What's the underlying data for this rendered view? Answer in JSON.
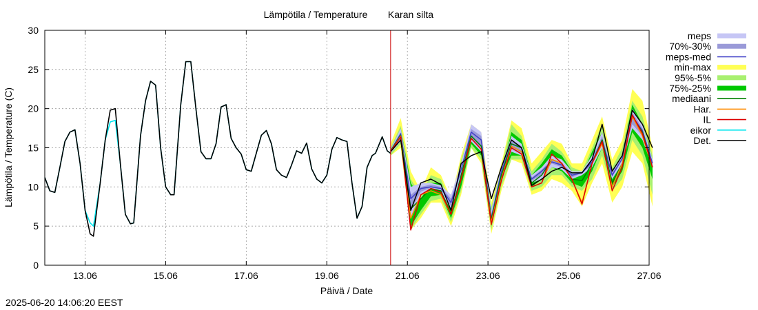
{
  "chart_data": {
    "type": "line",
    "title": "Lämpötila / Temperature",
    "station": "Karan silta",
    "xlabel": "Päivä / Date",
    "ylabel": "Lämpötila / Temperature (C)",
    "x_domain": [
      "2025-06-12",
      "2025-06-27"
    ],
    "ylim": [
      0,
      30
    ],
    "yticks": [
      "0",
      "5",
      "10",
      "15",
      "20",
      "25",
      "30"
    ],
    "xticks": [
      {
        "date": "2025-06-13",
        "label": "13.06"
      },
      {
        "date": "2025-06-15",
        "label": "15.06"
      },
      {
        "date": "2025-06-17",
        "label": "17.06"
      },
      {
        "date": "2025-06-19",
        "label": "19.06"
      },
      {
        "date": "2025-06-21",
        "label": "21.06"
      },
      {
        "date": "2025-06-23",
        "label": "23.06"
      },
      {
        "date": "2025-06-25",
        "label": "25.06"
      },
      {
        "date": "2025-06-27",
        "label": "27.06"
      }
    ],
    "grid": true,
    "legend_position": "outside-right",
    "now_line": "2025-06-20T14:00",
    "colors": {
      "meps": "#c6c6f5",
      "70%-30%": "#9a9ad8",
      "meps-med": "#4040c8",
      "min-max": "#ffff55",
      "95%-5%": "#a8f070",
      "75%-25%": "#00c800",
      "mediaani": "#008000",
      "Har.": "#ff8c00",
      "IL": "#dd0000",
      "eikor": "#00e5ee",
      "Det.": "#000000",
      "now_line": "#cc0000"
    },
    "legend": [
      {
        "key": "meps",
        "label": "meps",
        "style": "band"
      },
      {
        "key": "70%-30%",
        "label": "70%-30%",
        "style": "band"
      },
      {
        "key": "meps-med",
        "label": "meps-med",
        "style": "line"
      },
      {
        "key": "min-max",
        "label": "min-max",
        "style": "band"
      },
      {
        "key": "95%-5%",
        "label": "95%-5%",
        "style": "band"
      },
      {
        "key": "75%-25%",
        "label": "75%-25%",
        "style": "band"
      },
      {
        "key": "mediaani",
        "label": "mediaani",
        "style": "line"
      },
      {
        "key": "Har.",
        "label": "Har.",
        "style": "line"
      },
      {
        "key": "IL",
        "label": "IL",
        "style": "line"
      },
      {
        "key": "eikor",
        "label": "eikor",
        "style": "line"
      },
      {
        "key": "Det.",
        "label": "Det.",
        "style": "line"
      }
    ],
    "observed": {
      "x": [
        "2025-06-12T00:00",
        "2025-06-12T03:00",
        "2025-06-12T06:00",
        "2025-06-12T09:00",
        "2025-06-12T12:00",
        "2025-06-12T15:00",
        "2025-06-12T18:00",
        "2025-06-12T21:00",
        "2025-06-13T00:00",
        "2025-06-13T03:00",
        "2025-06-13T05:00",
        "2025-06-13T09:00",
        "2025-06-13T12:00",
        "2025-06-13T15:00",
        "2025-06-13T18:00",
        "2025-06-13T21:00",
        "2025-06-14T00:00",
        "2025-06-14T03:00",
        "2025-06-14T05:00",
        "2025-06-14T09:00",
        "2025-06-14T12:00",
        "2025-06-14T15:00",
        "2025-06-14T18:00",
        "2025-06-14T21:00",
        "2025-06-15T00:00",
        "2025-06-15T03:00",
        "2025-06-15T05:00",
        "2025-06-15T09:00",
        "2025-06-15T12:00",
        "2025-06-15T15:00",
        "2025-06-15T18:00",
        "2025-06-15T21:00",
        "2025-06-16T00:00",
        "2025-06-16T03:00",
        "2025-06-16T06:00",
        "2025-06-16T09:00",
        "2025-06-16T12:00",
        "2025-06-16T15:00",
        "2025-06-16T18:00",
        "2025-06-16T21:00",
        "2025-06-17T00:00",
        "2025-06-17T03:00",
        "2025-06-17T06:00",
        "2025-06-17T09:00",
        "2025-06-17T12:00",
        "2025-06-17T15:00",
        "2025-06-17T18:00",
        "2025-06-17T21:00",
        "2025-06-18T00:00",
        "2025-06-18T03:00",
        "2025-06-18T06:00",
        "2025-06-18T09:00",
        "2025-06-18T12:00",
        "2025-06-18T15:00",
        "2025-06-18T18:00",
        "2025-06-18T21:00",
        "2025-06-19T00:00",
        "2025-06-19T03:00",
        "2025-06-19T06:00",
        "2025-06-19T09:00",
        "2025-06-19T12:00",
        "2025-06-19T15:00",
        "2025-06-19T18:00",
        "2025-06-19T21:00",
        "2025-06-20T00:00",
        "2025-06-20T03:00",
        "2025-06-20T05:00",
        "2025-06-20T09:00",
        "2025-06-20T12:00",
        "2025-06-20T14:00"
      ],
      "det": [
        11.2,
        9.5,
        9.3,
        12.5,
        15.8,
        17.0,
        17.3,
        13.0,
        7.0,
        4.0,
        3.7,
        10.5,
        16.0,
        19.8,
        20.0,
        13.0,
        6.5,
        5.3,
        5.4,
        16.5,
        21.0,
        23.5,
        23.0,
        15.0,
        10.0,
        9.0,
        9.0,
        20.5,
        26.0,
        26.0,
        20.0,
        14.5,
        13.6,
        13.6,
        15.5,
        20.2,
        20.5,
        16.2,
        15.0,
        14.2,
        12.2,
        12.0,
        14.3,
        16.6,
        17.2,
        15.5,
        12.2,
        11.5,
        11.2,
        12.8,
        14.6,
        14.3,
        15.6,
        12.3,
        11.0,
        10.5,
        11.5,
        14.8,
        16.3,
        16.0,
        15.8,
        10.5,
        6.0,
        7.5,
        12.5,
        14.0,
        14.3,
        16.4,
        14.6,
        14.3
      ],
      "eikor": [
        11.2,
        9.5,
        9.3,
        12.5,
        15.8,
        17.0,
        17.3,
        13.0,
        7.0,
        5.4,
        5.0,
        10.5,
        16.0,
        18.3,
        18.5,
        13.0,
        6.5,
        5.3,
        5.4,
        16.5,
        21.0,
        23.5,
        23.0,
        15.0,
        10.0,
        9.0,
        9.0,
        20.5,
        26.0,
        26.0,
        20.0,
        14.5,
        13.6,
        13.6,
        15.5,
        20.2,
        20.5,
        16.2,
        15.0,
        14.2,
        12.2,
        12.0,
        14.3,
        16.6,
        17.2,
        15.5,
        12.2,
        11.5,
        11.2,
        12.8,
        14.6,
        14.3,
        15.6,
        12.3,
        11.0,
        10.5,
        11.5,
        14.8,
        16.3,
        16.0,
        15.8,
        10.5,
        6.0,
        7.5,
        12.5,
        14.0,
        14.3,
        16.4,
        14.6,
        14.3
      ]
    },
    "forecast": {
      "x": [
        "2025-06-20T14:00",
        "2025-06-20T20:00",
        "2025-06-21T02:00",
        "2025-06-21T08:00",
        "2025-06-21T14:00",
        "2025-06-21T20:00",
        "2025-06-22T02:00",
        "2025-06-22T08:00",
        "2025-06-22T14:00",
        "2025-06-22T20:00",
        "2025-06-23T02:00",
        "2025-06-23T08:00",
        "2025-06-23T14:00",
        "2025-06-23T20:00",
        "2025-06-24T02:00",
        "2025-06-24T08:00",
        "2025-06-24T14:00",
        "2025-06-24T20:00",
        "2025-06-25T02:00",
        "2025-06-25T08:00",
        "2025-06-25T14:00",
        "2025-06-25T20:00",
        "2025-06-26T02:00",
        "2025-06-26T08:00",
        "2025-06-26T14:00",
        "2025-06-26T20:00",
        "2025-06-27T02:00"
      ],
      "minmax_lo": [
        14.0,
        15.0,
        4.5,
        6.0,
        8.0,
        8.0,
        5.0,
        9.0,
        15.0,
        13.0,
        4.0,
        9.5,
        13.5,
        13.0,
        9.0,
        9.5,
        11.0,
        10.5,
        9.5,
        7.5,
        10.5,
        13.0,
        8.0,
        10.0,
        14.5,
        13.0,
        7.5
      ],
      "minmax_hi": [
        15.5,
        18.8,
        12.0,
        9.5,
        12.5,
        11.5,
        8.5,
        14.0,
        18.0,
        17.0,
        8.0,
        13.0,
        18.5,
        17.5,
        13.0,
        14.5,
        16.0,
        15.5,
        13.0,
        13.0,
        16.0,
        19.0,
        13.5,
        16.0,
        22.5,
        21.0,
        15.0
      ],
      "p95_lo": [
        14.0,
        15.5,
        4.5,
        6.5,
        8.2,
        8.5,
        5.5,
        9.5,
        15.0,
        13.5,
        4.5,
        10.0,
        13.5,
        13.5,
        9.5,
        10.0,
        11.5,
        11.5,
        10.0,
        9.5,
        11.0,
        14.0,
        9.5,
        11.0,
        16.0,
        14.0,
        9.0
      ],
      "p95_hi": [
        15.0,
        17.8,
        11.0,
        9.0,
        11.5,
        11.0,
        8.0,
        13.5,
        17.5,
        16.5,
        7.5,
        12.5,
        18.0,
        16.5,
        12.0,
        13.5,
        15.5,
        14.5,
        12.5,
        12.0,
        15.0,
        18.0,
        12.5,
        15.0,
        21.0,
        19.0,
        14.0
      ],
      "p75_lo": [
        14.5,
        16.0,
        5.0,
        7.0,
        8.8,
        9.0,
        6.0,
        10.0,
        15.5,
        14.0,
        5.0,
        11.0,
        14.0,
        14.0,
        10.0,
        11.0,
        12.5,
        12.0,
        10.5,
        10.0,
        12.0,
        15.0,
        10.0,
        12.0,
        17.0,
        15.0,
        11.0
      ],
      "p75_hi": [
        14.8,
        17.5,
        10.5,
        8.5,
        10.5,
        10.5,
        7.5,
        12.5,
        17.0,
        16.0,
        7.0,
        12.0,
        17.0,
        16.0,
        11.5,
        13.0,
        14.8,
        14.0,
        12.0,
        11.5,
        14.5,
        17.0,
        12.0,
        14.0,
        20.5,
        18.0,
        13.5
      ],
      "meps_lo": [
        14.3,
        15.8,
        6.0,
        9.0,
        9.8,
        9.5,
        7.0,
        11.5,
        15.8,
        14.5,
        5.5,
        11.5,
        14.5,
        14.0,
        10.5,
        11.0,
        12.5,
        12.2,
        11.0,
        11.5,
        12.5,
        15.0,
        11.0,
        13.0,
        17.5,
        16.0,
        12.5
      ],
      "meps_hi": [
        14.8,
        17.5,
        10.0,
        10.5,
        10.5,
        10.2,
        9.0,
        13.0,
        18.0,
        17.0,
        7.0,
        12.5,
        16.5,
        15.5,
        11.5,
        12.5,
        14.0,
        13.5,
        12.0,
        12.0,
        14.0,
        17.0,
        12.0,
        14.0,
        20.0,
        18.0,
        13.5
      ],
      "meps70_lo": [
        14.5,
        16.2,
        7.0,
        9.4,
        9.9,
        9.7,
        7.5,
        12.0,
        16.2,
        15.0,
        5.8,
        11.8,
        14.8,
        14.2,
        10.8,
        11.5,
        13.0,
        12.5,
        11.2,
        11.8,
        12.8,
        15.5,
        11.3,
        13.5,
        18.0,
        16.5,
        13.0
      ],
      "meps70_hi": [
        14.7,
        17.0,
        9.0,
        10.0,
        10.3,
        10.0,
        8.5,
        12.5,
        17.4,
        16.5,
        6.5,
        12.2,
        16.0,
        15.2,
        11.2,
        12.2,
        13.5,
        13.0,
        11.8,
        11.8,
        13.5,
        16.5,
        11.8,
        13.8,
        19.5,
        17.5,
        13.2
      ],
      "meps_med": [
        14.6,
        16.8,
        8.5,
        9.8,
        10.0,
        9.8,
        8.0,
        12.2,
        17.0,
        16.0,
        6.0,
        12.0,
        15.5,
        15.0,
        11.0,
        12.0,
        13.2,
        12.8,
        11.5,
        11.8,
        13.2,
        16.0,
        11.5,
        13.6,
        19.0,
        17.2,
        13.0
      ],
      "mediaani": [
        14.6,
        16.6,
        7.2,
        8.5,
        9.8,
        9.5,
        6.5,
        11.5,
        16.5,
        15.2,
        5.8,
        11.5,
        15.5,
        15.0,
        10.5,
        11.5,
        13.5,
        13.0,
        11.0,
        10.8,
        13.0,
        16.0,
        10.5,
        13.0,
        19.0,
        17.0,
        12.5
      ],
      "har": [
        14.5,
        16.5,
        6.0,
        9.0,
        9.5,
        9.0,
        6.5,
        11.0,
        16.2,
        14.8,
        5.5,
        11.0,
        15.2,
        14.5,
        10.0,
        10.5,
        13.5,
        13.0,
        11.0,
        8.0,
        13.0,
        15.5,
        10.0,
        13.0,
        19.0,
        16.5,
        12.5
      ],
      "il": [
        14.5,
        16.4,
        4.5,
        9.0,
        9.8,
        9.3,
        6.5,
        11.0,
        16.2,
        14.8,
        5.2,
        10.8,
        15.0,
        14.2,
        10.0,
        10.5,
        14.2,
        13.0,
        11.0,
        7.8,
        13.0,
        15.8,
        9.5,
        12.5,
        19.2,
        16.8,
        12.5
      ],
      "det": [
        14.5,
        16.0,
        7.0,
        10.5,
        11.0,
        10.3,
        7.0,
        13.0,
        14.0,
        14.5,
        8.5,
        12.5,
        16.0,
        15.0,
        10.2,
        11.0,
        12.0,
        12.5,
        11.8,
        11.8,
        13.5,
        18.0,
        12.0,
        14.0,
        19.8,
        18.0,
        15.0
      ]
    }
  },
  "footer": {
    "timestamp": "2025-06-20 14:06:20 EEST"
  }
}
